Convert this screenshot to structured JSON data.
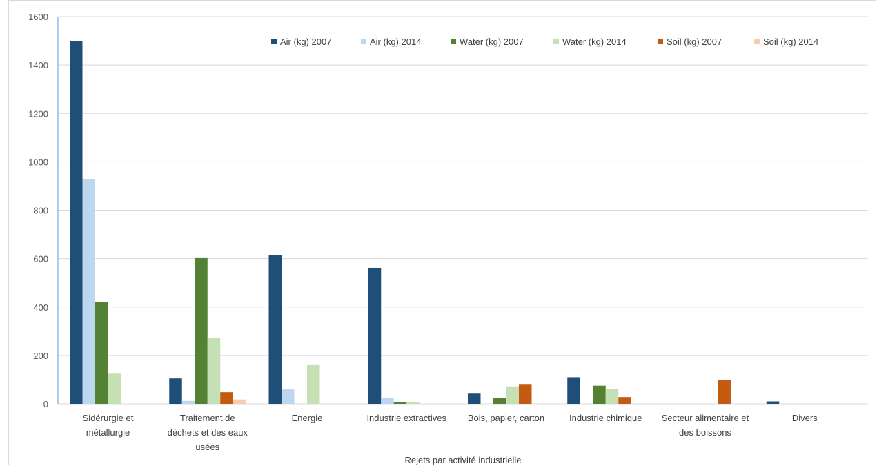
{
  "chart_data": {
    "type": "bar",
    "title": "",
    "xlabel": "Rejets par activité industrielle",
    "ylabel": "",
    "ylim": [
      0,
      1600
    ],
    "yticks": [
      0,
      200,
      400,
      600,
      800,
      1000,
      1200,
      1400,
      1600
    ],
    "grid": true,
    "legend_position": "top",
    "categories": [
      [
        "Sidérurgie et",
        "métallurgie"
      ],
      [
        "Traitement de",
        "déchets et des eaux",
        "usées"
      ],
      [
        "Energie"
      ],
      [
        "Industrie extractives"
      ],
      [
        "Bois, papier, carton"
      ],
      [
        "Industrie chimique"
      ],
      [
        "Secteur alimentaire et",
        "des boissons"
      ],
      [
        "Divers"
      ]
    ],
    "series": [
      {
        "name": "Air (kg) 2007",
        "color": "#1f4e79",
        "values": [
          1500,
          105,
          615,
          562,
          45,
          110,
          0,
          10
        ]
      },
      {
        "name": "Air (kg) 2014",
        "color": "#bdd7ee",
        "values": [
          928,
          12,
          60,
          25,
          0,
          0,
          0,
          0
        ]
      },
      {
        "name": "Water (kg) 2007",
        "color": "#548235",
        "values": [
          422,
          605,
          0,
          8,
          25,
          75,
          0,
          0
        ]
      },
      {
        "name": "Water (kg) 2014",
        "color": "#c5e0b4",
        "values": [
          125,
          273,
          163,
          8,
          72,
          60,
          0,
          0
        ]
      },
      {
        "name": "Soil (kg)  2007",
        "color": "#c55a11",
        "values": [
          0,
          48,
          0,
          0,
          82,
          28,
          97,
          0
        ]
      },
      {
        "name": "Soil (kg)  2014",
        "color": "#f8cbad",
        "values": [
          0,
          18,
          0,
          0,
          0,
          0,
          0,
          0
        ]
      }
    ]
  }
}
